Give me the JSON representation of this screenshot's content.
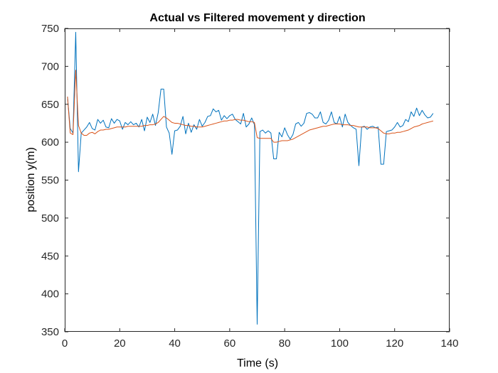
{
  "chart_data": {
    "type": "line",
    "title": "Actual vs Filtered movement y direction",
    "xlabel": "Time (s)",
    "ylabel": "position y(m)",
    "xlim": [
      0,
      140
    ],
    "ylim": [
      350,
      750
    ],
    "xticks": [
      0,
      20,
      40,
      60,
      80,
      100,
      120,
      140
    ],
    "yticks": [
      350,
      400,
      450,
      500,
      550,
      600,
      650,
      700,
      750
    ],
    "grid": false,
    "legend": "none",
    "series": [
      {
        "color": "#0072BD",
        "x": [
          1,
          2,
          3,
          4,
          5,
          6,
          7,
          8,
          9,
          10,
          11,
          12,
          13,
          14,
          15,
          16,
          17,
          18,
          19,
          20,
          21,
          22,
          23,
          24,
          25,
          26,
          27,
          28,
          29,
          30,
          31,
          32,
          33,
          34,
          35,
          36,
          37,
          38,
          39,
          40,
          41,
          42,
          43,
          44,
          45,
          46,
          47,
          48,
          49,
          50,
          51,
          52,
          53,
          54,
          55,
          56,
          57,
          58,
          59,
          60,
          61,
          62,
          63,
          64,
          65,
          66,
          67,
          68,
          69,
          70,
          71,
          72,
          73,
          74,
          75,
          76,
          77,
          78,
          79,
          80,
          81,
          82,
          83,
          84,
          85,
          86,
          87,
          88,
          89,
          90,
          91,
          92,
          93,
          94,
          95,
          96,
          97,
          98,
          99,
          100,
          101,
          102,
          103,
          104,
          105,
          106,
          107,
          108,
          109,
          110,
          111,
          112,
          113,
          114,
          115,
          116,
          117,
          118,
          119,
          120,
          121,
          122,
          123,
          124,
          125,
          126,
          127,
          128,
          129,
          130,
          131,
          132,
          133,
          134
        ],
        "y": [
          660,
          618,
          612,
          745,
          561,
          612,
          616,
          620,
          626,
          618,
          616,
          630,
          625,
          629,
          620,
          619,
          631,
          625,
          630,
          628,
          617,
          626,
          623,
          627,
          623,
          625,
          620,
          630,
          615,
          633,
          626,
          637,
          622,
          639,
          670,
          670,
          620,
          612,
          584,
          615,
          616,
          621,
          634,
          611,
          625,
          613,
          623,
          617,
          630,
          621,
          626,
          634,
          635,
          644,
          640,
          642,
          629,
          635,
          631,
          635,
          637,
          630,
          627,
          624,
          638,
          620,
          624,
          632,
          623,
          360,
          614,
          616,
          612,
          615,
          612,
          578,
          578,
          613,
          607,
          619,
          610,
          604,
          610,
          624,
          626,
          621,
          625,
          638,
          639,
          637,
          632,
          632,
          640,
          626,
          624,
          629,
          640,
          626,
          624,
          634,
          620,
          637,
          626,
          622,
          619,
          617,
          569,
          620,
          621,
          617,
          620,
          621,
          619,
          620,
          571,
          571,
          614,
          615,
          616,
          620,
          626,
          620,
          622,
          630,
          627,
          640,
          634,
          645,
          635,
          642,
          636,
          632,
          633,
          638
        ]
      },
      {
        "color": "#D95319",
        "x": [
          1,
          2,
          3,
          4,
          5,
          6,
          7,
          8,
          9,
          10,
          11,
          12,
          13,
          14,
          15,
          16,
          17,
          18,
          19,
          20,
          21,
          22,
          23,
          24,
          25,
          26,
          27,
          28,
          29,
          30,
          31,
          32,
          33,
          34,
          35,
          36,
          37,
          38,
          39,
          40,
          41,
          42,
          43,
          44,
          45,
          46,
          47,
          48,
          49,
          50,
          51,
          52,
          53,
          54,
          55,
          56,
          57,
          58,
          59,
          60,
          61,
          62,
          63,
          64,
          65,
          66,
          67,
          68,
          69,
          70,
          71,
          72,
          73,
          74,
          75,
          76,
          77,
          78,
          79,
          80,
          81,
          82,
          83,
          84,
          85,
          86,
          87,
          88,
          89,
          90,
          91,
          92,
          93,
          94,
          95,
          96,
          97,
          98,
          99,
          100,
          101,
          102,
          103,
          104,
          105,
          106,
          107,
          108,
          109,
          110,
          111,
          112,
          113,
          114,
          115,
          116,
          117,
          118,
          119,
          120,
          121,
          122,
          123,
          124,
          125,
          126,
          127,
          128,
          129,
          130,
          131,
          132,
          133,
          134
        ],
        "y": [
          660,
          612,
          610,
          695,
          622,
          612,
          609,
          609,
          612,
          613,
          611,
          614,
          616,
          616,
          617,
          617,
          618,
          619,
          620,
          620,
          620,
          620,
          621,
          621,
          621,
          621,
          621,
          621,
          622,
          622,
          623,
          623,
          624,
          626,
          630,
          634,
          632,
          629,
          626,
          625,
          625,
          624,
          623,
          622,
          622,
          621,
          621,
          620,
          620,
          620,
          621,
          622,
          623,
          624,
          625,
          626,
          627,
          628,
          628,
          629,
          629,
          630,
          630,
          629,
          629,
          628,
          627,
          627,
          626,
          606,
          605,
          605,
          605,
          605,
          605,
          600,
          600,
          601,
          602,
          602,
          602,
          603,
          604,
          606,
          608,
          610,
          612,
          614,
          616,
          617,
          618,
          619,
          620,
          621,
          621,
          622,
          623,
          624,
          624,
          624,
          623,
          623,
          623,
          622,
          622,
          621,
          620,
          620,
          620,
          620,
          619,
          619,
          619,
          618,
          615,
          612,
          611,
          611,
          612,
          612,
          613,
          613,
          614,
          615,
          616,
          618,
          620,
          621,
          622,
          624,
          625,
          626,
          627,
          628
        ]
      }
    ]
  }
}
